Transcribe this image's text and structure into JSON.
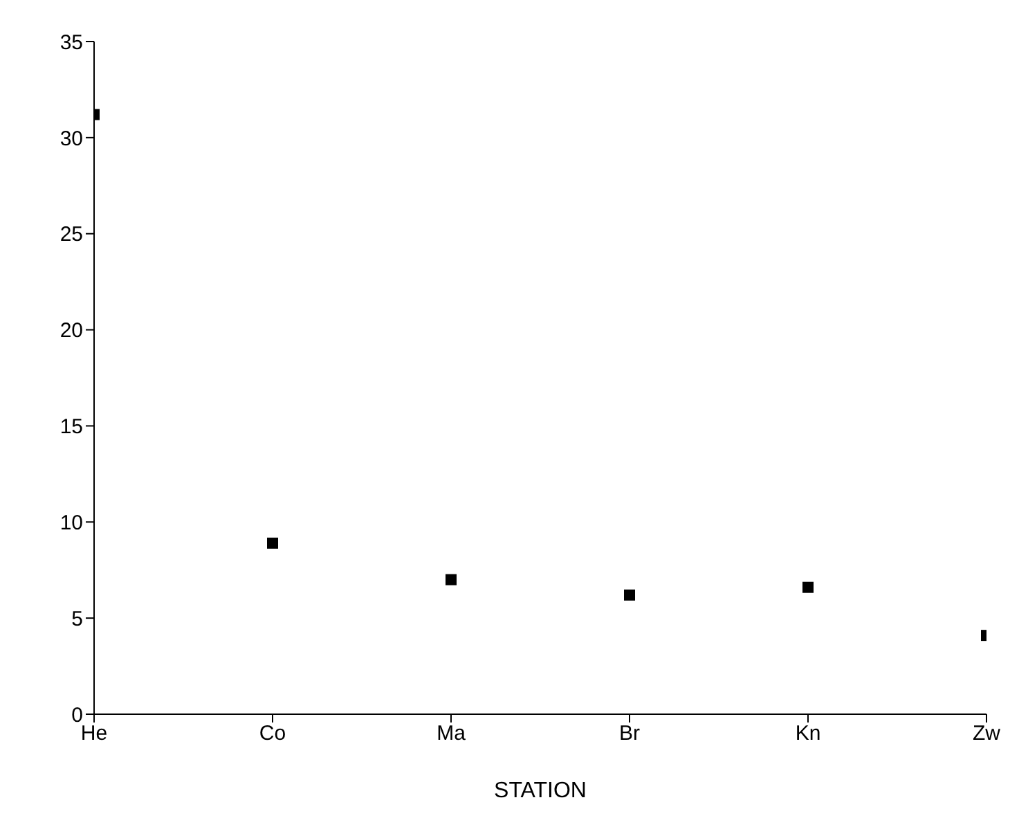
{
  "chart_data": {
    "type": "scatter",
    "xlabel": "STATION",
    "categories": [
      "He",
      "Co",
      "Ma",
      "Br",
      "Kn",
      "Zw"
    ],
    "series": [
      {
        "color": "#000000",
        "values": [
          31.2,
          8.9,
          7.0,
          6.2,
          6.6,
          4.1
        ]
      }
    ],
    "ylim": [
      0,
      35
    ],
    "yticks": [
      0,
      5,
      10,
      15,
      20,
      25,
      30,
      35
    ],
    "grid": false,
    "legend": false,
    "marker": "square"
  }
}
